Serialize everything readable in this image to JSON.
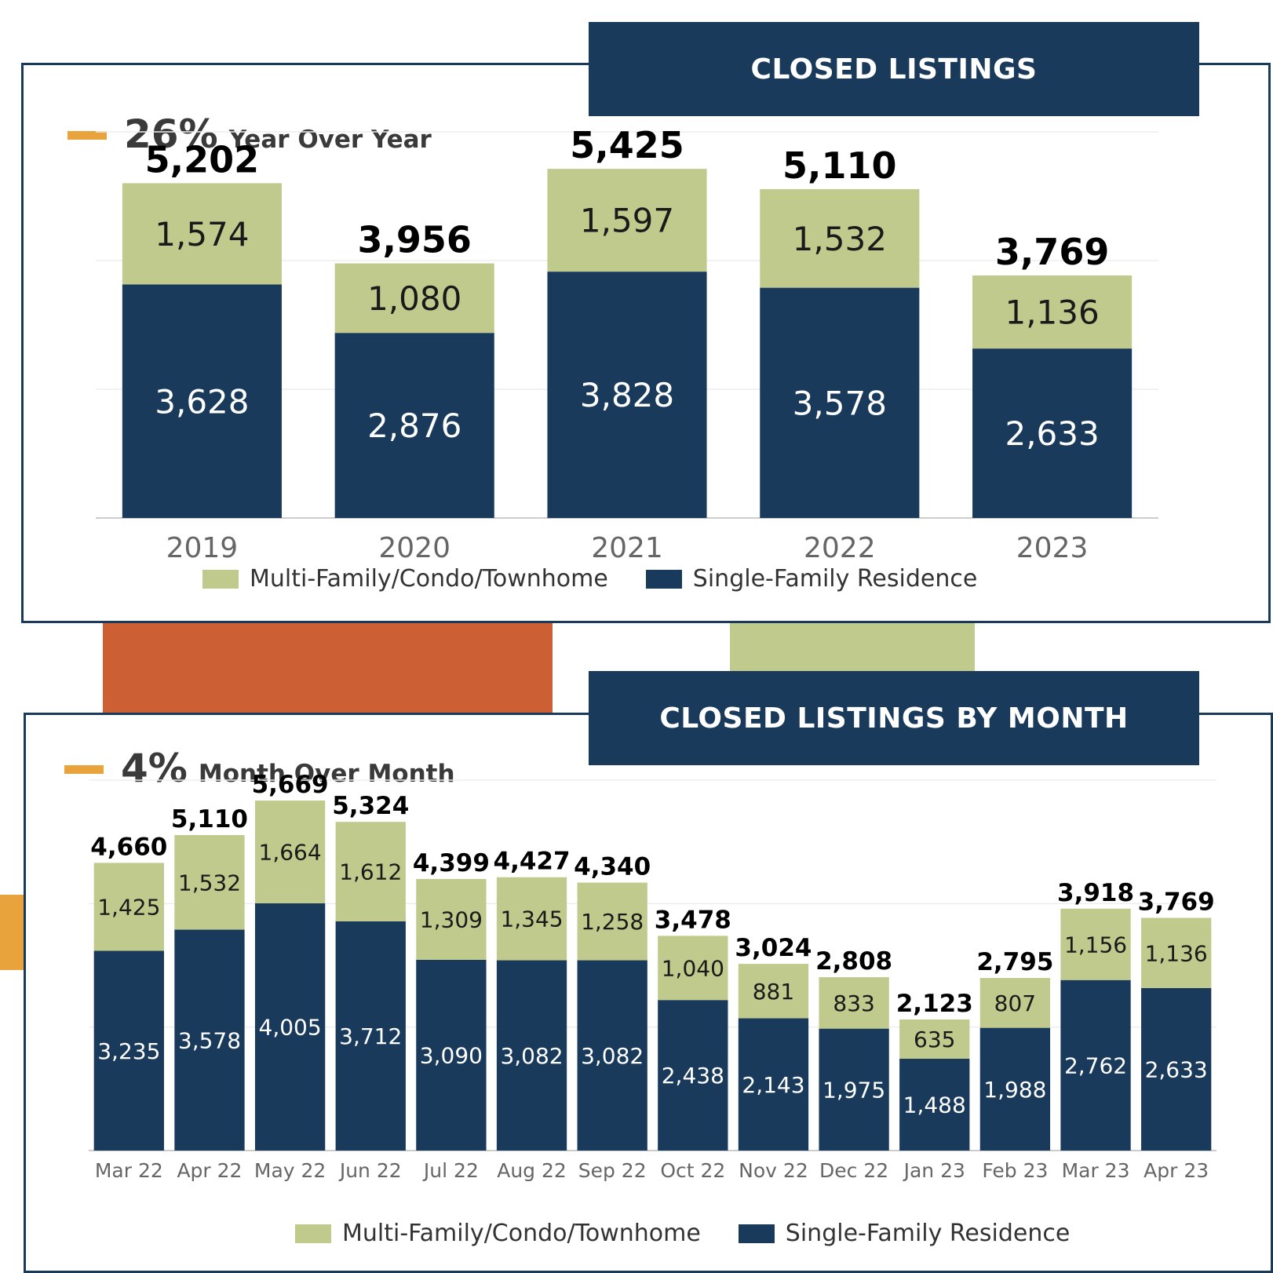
{
  "colors": {
    "navy": "#1a3a5c",
    "green": "#bfca8c",
    "orange_accent": "#e8a33d",
    "rust": "#cc5f33"
  },
  "top_panel": {
    "banner": "CLOSED LISTINGS",
    "kpi_value": "26%",
    "kpi_label": "Year Over Year",
    "legend": [
      "Multi-Family/Condo/Townhome",
      "Single-Family Residence"
    ]
  },
  "bottom_panel": {
    "banner": "CLOSED LISTINGS BY MONTH",
    "kpi_value": "4%",
    "kpi_label": "Month Over Month",
    "legend": [
      "Multi-Family/Condo/Townhome",
      "Single-Family Residence"
    ]
  },
  "chart_data": [
    {
      "type": "bar",
      "stacked": true,
      "categories": [
        "2019",
        "2020",
        "2021",
        "2022",
        "2023"
      ],
      "series": [
        {
          "name": "Single-Family Residence",
          "values": [
            3628,
            2876,
            3828,
            3578,
            2633
          ],
          "color": "#1a3a5c"
        },
        {
          "name": "Multi-Family/Condo/Townhome",
          "values": [
            1574,
            1080,
            1597,
            1532,
            1136
          ],
          "color": "#bfca8c"
        }
      ],
      "totals": [
        5202,
        3956,
        5425,
        5110,
        3769
      ],
      "ylim": [
        0,
        6000
      ],
      "grid": true,
      "legend_position": "bottom"
    },
    {
      "type": "bar",
      "stacked": true,
      "categories": [
        "Mar 22",
        "Apr 22",
        "May 22",
        "Jun 22",
        "Jul 22",
        "Aug 22",
        "Sep 22",
        "Oct 22",
        "Nov 22",
        "Dec 22",
        "Jan 23",
        "Feb 23",
        "Mar 23",
        "Apr 23"
      ],
      "series": [
        {
          "name": "Single-Family Residence",
          "values": [
            3235,
            3578,
            4005,
            3712,
            3090,
            3082,
            3082,
            2438,
            2143,
            1975,
            1488,
            1988,
            2762,
            2633
          ],
          "color": "#1a3a5c"
        },
        {
          "name": "Multi-Family/Condo/Townhome",
          "values": [
            1425,
            1532,
            1664,
            1612,
            1309,
            1345,
            1258,
            1040,
            881,
            833,
            635,
            807,
            1156,
            1136
          ],
          "color": "#bfca8c"
        }
      ],
      "totals": [
        4660,
        5110,
        5669,
        5324,
        4399,
        4427,
        4340,
        3478,
        3024,
        2808,
        2123,
        2795,
        3918,
        3769
      ],
      "ylim": [
        0,
        6000
      ],
      "grid": true,
      "legend_position": "bottom"
    }
  ]
}
